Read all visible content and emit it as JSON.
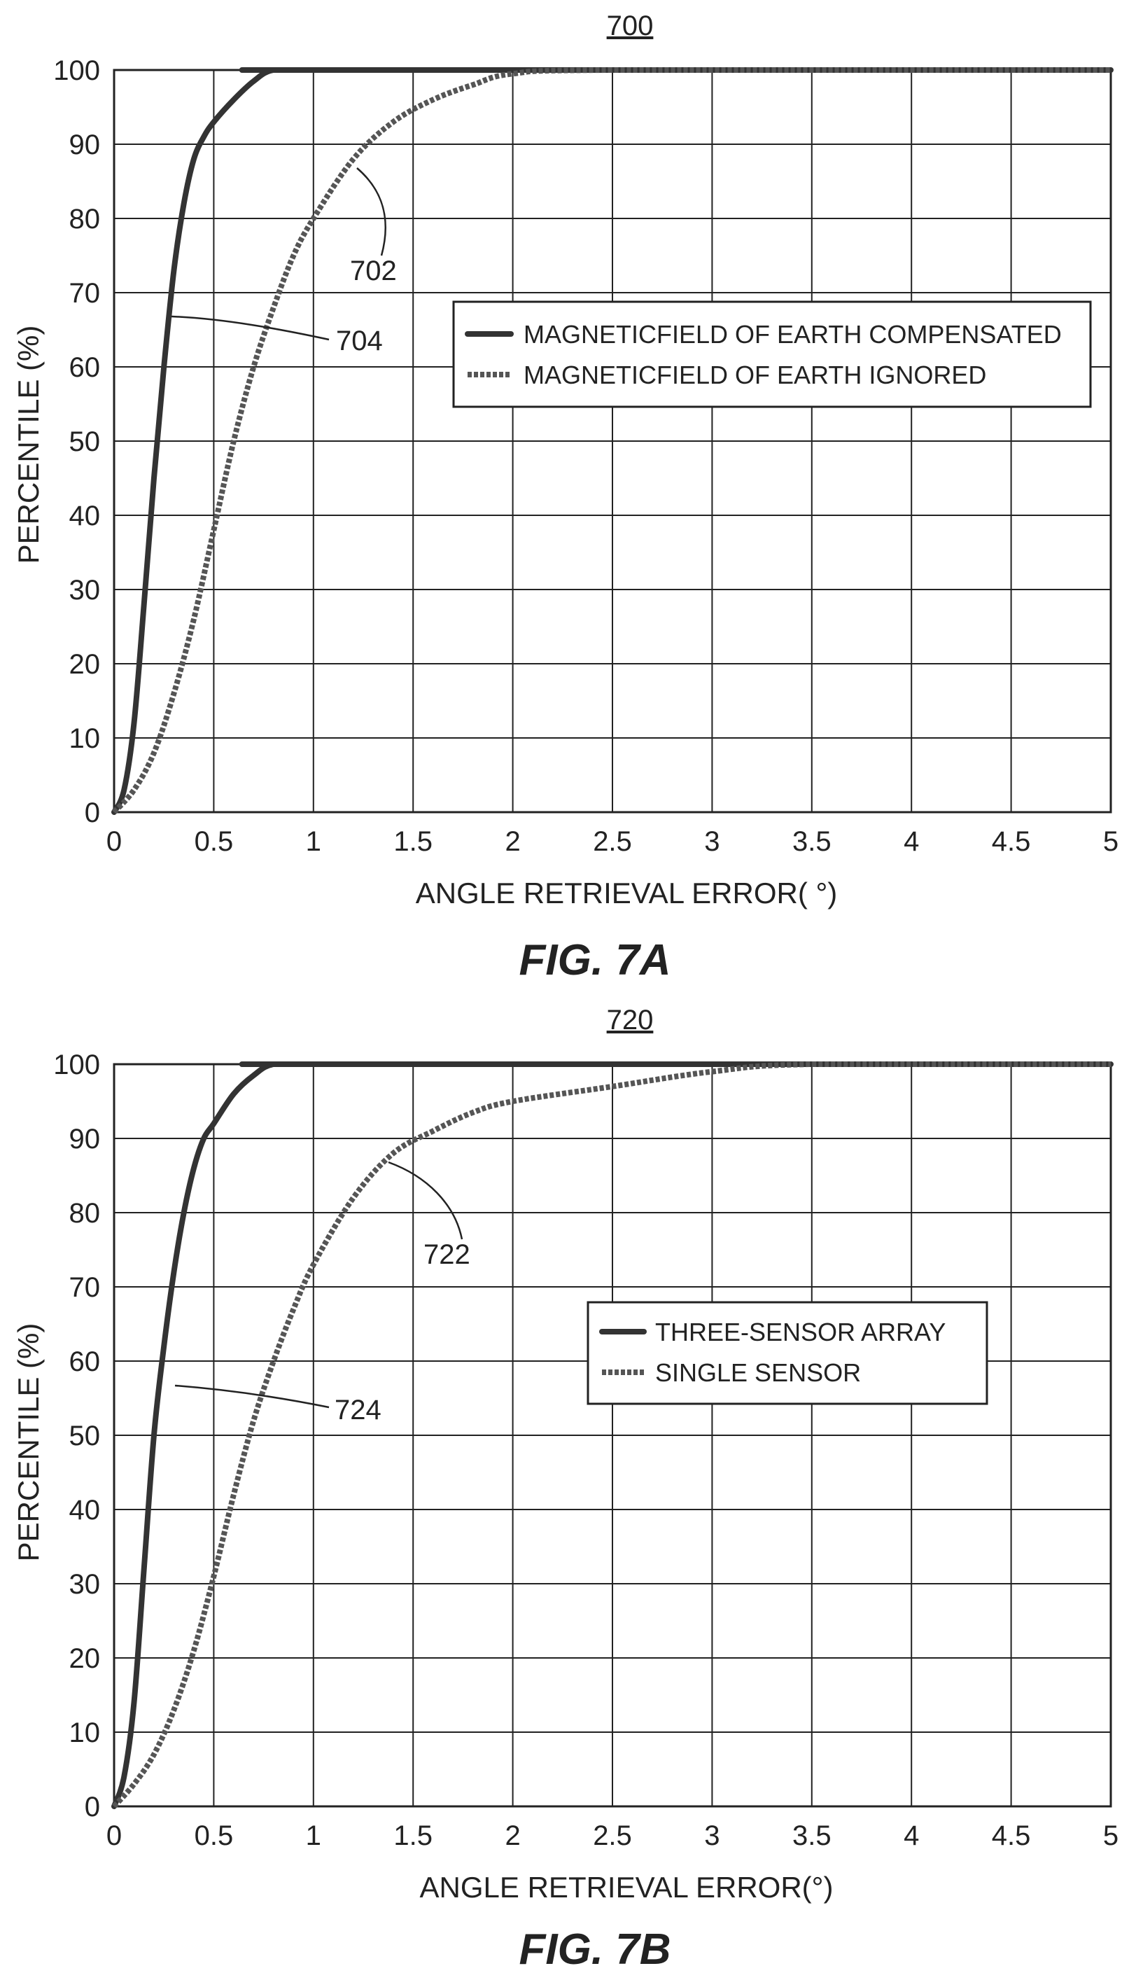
{
  "chart_data": [
    {
      "type": "line",
      "ref": "700",
      "caption": "FIG. 7A",
      "xlabel": "ANGLE RETRIEVAL ERROR( °)",
      "ylabel": "PERCENTILE (%)",
      "xlim": [
        0,
        5
      ],
      "ylim": [
        0,
        100
      ],
      "xticks": [
        "0",
        "0.5",
        "1",
        "1.5",
        "2",
        "2.5",
        "3",
        "3.5",
        "4",
        "4.5",
        "5"
      ],
      "yticks": [
        "0",
        "10",
        "20",
        "30",
        "40",
        "50",
        "60",
        "70",
        "80",
        "90",
        "100"
      ],
      "grid": true,
      "legend_position": "center-right",
      "series": [
        {
          "name": "MAGNETICFIELD OF EARTH COMPENSATED",
          "style": "solid",
          "callout": "704",
          "x": [
            0,
            0.05,
            0.1,
            0.15,
            0.2,
            0.25,
            0.3,
            0.35,
            0.4,
            0.45,
            0.5,
            0.6,
            0.7,
            0.8,
            1.0,
            5
          ],
          "y": [
            0,
            3,
            12,
            28,
            45,
            60,
            73,
            82,
            88,
            91,
            93,
            96,
            98.5,
            100,
            100,
            100
          ]
        },
        {
          "name": "MAGNETICFIELD OF EARTH IGNORED",
          "style": "dashed",
          "callout": "702",
          "x": [
            0,
            0.1,
            0.2,
            0.3,
            0.4,
            0.5,
            0.6,
            0.7,
            0.8,
            0.9,
            1.0,
            1.2,
            1.4,
            1.6,
            1.8,
            2.0,
            2.5,
            5
          ],
          "y": [
            0,
            3,
            8,
            16,
            26,
            38,
            50,
            60,
            68,
            75,
            80,
            88,
            93,
            96,
            98,
            99.5,
            100,
            100
          ]
        }
      ]
    },
    {
      "type": "line",
      "ref": "720",
      "caption": "FIG. 7B",
      "xlabel": "ANGLE RETRIEVAL ERROR(°)",
      "ylabel": "PERCENTILE (%)",
      "xlim": [
        0,
        5
      ],
      "ylim": [
        0,
        100
      ],
      "xticks": [
        "0",
        "0.5",
        "1",
        "1.5",
        "2",
        "2.5",
        "3",
        "3.5",
        "4",
        "4.5",
        "5"
      ],
      "yticks": [
        "0",
        "10",
        "20",
        "30",
        "40",
        "50",
        "60",
        "70",
        "80",
        "90",
        "100"
      ],
      "grid": true,
      "legend_position": "center-right",
      "series": [
        {
          "name": "THREE-SENSOR ARRAY",
          "style": "solid",
          "callout": "724",
          "x": [
            0,
            0.05,
            0.1,
            0.15,
            0.2,
            0.25,
            0.3,
            0.35,
            0.4,
            0.45,
            0.5,
            0.6,
            0.7,
            0.8,
            1.0,
            5
          ],
          "y": [
            0,
            4,
            14,
            32,
            50,
            62,
            72,
            80,
            86,
            90,
            92,
            96,
            98.5,
            100,
            100,
            100
          ]
        },
        {
          "name": "SINGLE SENSOR",
          "style": "dashed",
          "callout": "722",
          "x": [
            0,
            0.1,
            0.2,
            0.3,
            0.4,
            0.5,
            0.6,
            0.7,
            0.8,
            0.9,
            1.0,
            1.2,
            1.4,
            1.6,
            1.8,
            2.0,
            2.5,
            3.0,
            3.5,
            5
          ],
          "y": [
            0,
            3,
            7,
            13,
            21,
            31,
            42,
            52,
            60,
            67,
            73,
            82,
            88,
            91,
            93.5,
            95,
            97,
            99,
            100,
            100
          ]
        }
      ]
    }
  ]
}
